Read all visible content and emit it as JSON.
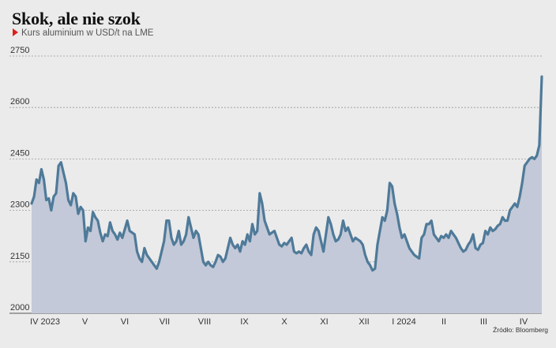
{
  "chart_data": {
    "type": "area",
    "title": "Skok, ale nie szok",
    "subtitle": "Kurs aluminium w USD/t na LME",
    "source": "Źródło: Bloomberg",
    "ylim": [
      2000,
      2750
    ],
    "yticks": [
      2000,
      2150,
      2300,
      2450,
      2600,
      2750
    ],
    "ytick_labels": [
      "2000",
      "2150",
      "2300",
      "2450",
      "2600",
      "2750"
    ],
    "grid": "horizontal dashed",
    "xticks": [
      "IV 2023",
      "V",
      "VI",
      "VII",
      "VIII",
      "IX",
      "X",
      "XI",
      "XII",
      "I 2024",
      "II",
      "III",
      "IV"
    ],
    "series": [
      {
        "values": [
          2320,
          2340,
          2390,
          2380,
          2420,
          2390,
          2330,
          2335,
          2300,
          2340,
          2350,
          2430,
          2440,
          2410,
          2380,
          2330,
          2315,
          2350,
          2340,
          2290,
          2310,
          2300,
          2210,
          2250,
          2240,
          2295,
          2280,
          2270,
          2235,
          2210,
          2230,
          2225,
          2265,
          2240,
          2230,
          2215,
          2235,
          2220,
          2245,
          2270,
          2240,
          2235,
          2230,
          2180,
          2160,
          2150,
          2190,
          2170,
          2160,
          2150,
          2140,
          2130,
          2150,
          2180,
          2210,
          2270,
          2270,
          2220,
          2200,
          2210,
          2240,
          2200,
          2210,
          2230,
          2280,
          2250,
          2220,
          2240,
          2230,
          2190,
          2150,
          2140,
          2150,
          2140,
          2135,
          2150,
          2170,
          2165,
          2150,
          2160,
          2190,
          2220,
          2200,
          2190,
          2200,
          2180,
          2210,
          2200,
          2230,
          2210,
          2260,
          2230,
          2240,
          2350,
          2320,
          2270,
          2250,
          2230,
          2235,
          2240,
          2220,
          2200,
          2195,
          2205,
          2200,
          2210,
          2220,
          2180,
          2175,
          2180,
          2175,
          2190,
          2200,
          2180,
          2170,
          2230,
          2250,
          2240,
          2210,
          2180,
          2230,
          2280,
          2260,
          2230,
          2210,
          2215,
          2230,
          2270,
          2240,
          2250,
          2230,
          2210,
          2220,
          2215,
          2210,
          2200,
          2170,
          2150,
          2140,
          2125,
          2130,
          2200,
          2240,
          2280,
          2270,
          2300,
          2380,
          2370,
          2320,
          2290,
          2250,
          2220,
          2230,
          2210,
          2190,
          2180,
          2170,
          2165,
          2160,
          2220,
          2230,
          2260,
          2260,
          2270,
          2230,
          2220,
          2210,
          2225,
          2220,
          2230,
          2220,
          2240,
          2230,
          2220,
          2205,
          2190,
          2180,
          2185,
          2200,
          2210,
          2230,
          2190,
          2185,
          2200,
          2205,
          2240,
          2230,
          2250,
          2240,
          2245,
          2255,
          2260,
          2280,
          2270,
          2270,
          2300,
          2310,
          2320,
          2310,
          2340,
          2380,
          2430,
          2440,
          2450,
          2455,
          2450,
          2460,
          2490,
          2690
        ]
      }
    ],
    "colors": {
      "line": "#4f7a99",
      "area": "#c3c9d8",
      "grid": "#9a9a9a",
      "background": "#ebebeb",
      "marker": "#d9221c"
    }
  }
}
